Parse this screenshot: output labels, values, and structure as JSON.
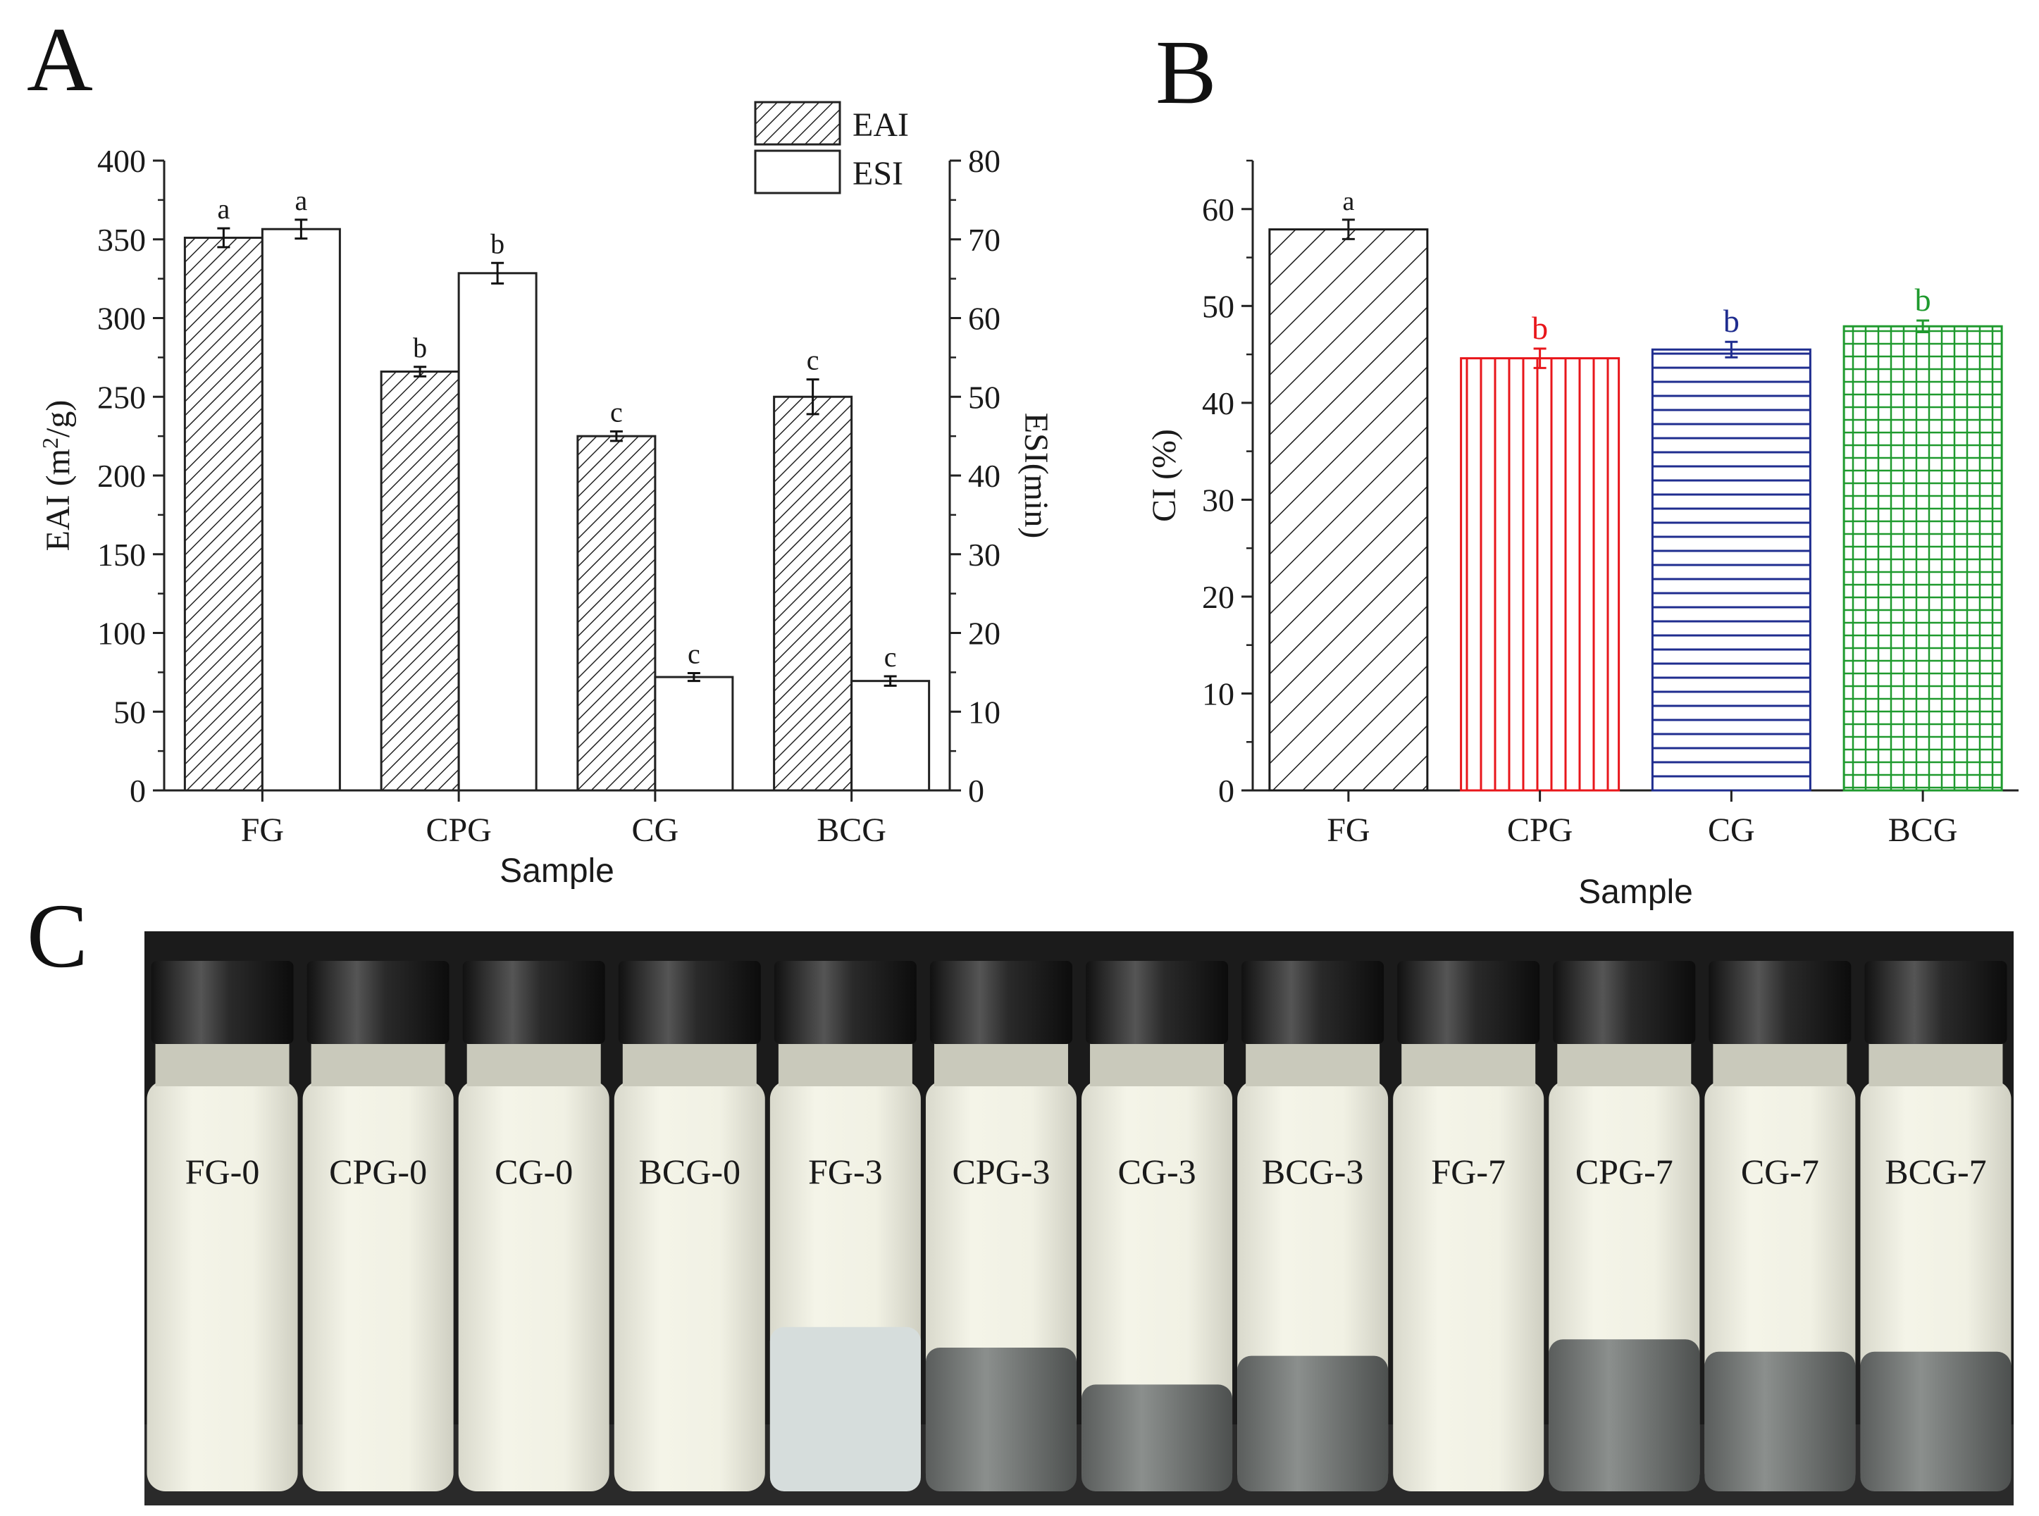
{
  "panels": {
    "a": {
      "letter": "A"
    },
    "b": {
      "letter": "B"
    },
    "c": {
      "letter": "C"
    }
  },
  "chart_data": [
    {
      "id": "A",
      "type": "bar",
      "categories": [
        "FG",
        "CPG",
        "CG",
        "BCG"
      ],
      "xlabel": "Sample",
      "ylabel": "EAI (m²/g)",
      "ylabel_parts": {
        "pre": "EAI (m",
        "sup": "2",
        "post": "/g)"
      },
      "y2label": "ESI(min)",
      "ylim": [
        0,
        400
      ],
      "yticks": [
        0,
        50,
        100,
        150,
        200,
        250,
        300,
        350,
        400
      ],
      "y2lim": [
        0,
        80
      ],
      "y2ticks": [
        0,
        10,
        20,
        30,
        40,
        50,
        60,
        70,
        80
      ],
      "legend": {
        "position": "top-right",
        "entries": [
          "EAI",
          "ESI"
        ]
      },
      "series": [
        {
          "name": "EAI",
          "axis": "left",
          "pattern": "diagonal-hatch",
          "values": [
            351,
            266,
            225,
            250
          ],
          "errors": [
            6,
            3,
            3,
            11
          ],
          "letters": [
            "a",
            "b",
            "c",
            "c"
          ]
        },
        {
          "name": "ESI",
          "axis": "right",
          "pattern": "open",
          "values": [
            71.3,
            65.7,
            14.4,
            13.9
          ],
          "errors": [
            1.2,
            1.3,
            0.5,
            0.6
          ],
          "letters": [
            "a",
            "b",
            "c",
            "c"
          ]
        }
      ]
    },
    {
      "id": "B",
      "type": "bar",
      "categories": [
        "FG",
        "CPG",
        "CG",
        "BCG"
      ],
      "xlabel": "Sample",
      "ylabel": "CI (%)",
      "ylim": [
        0,
        65
      ],
      "yticks": [
        0,
        10,
        20,
        30,
        40,
        50,
        60
      ],
      "series": [
        {
          "name": "CI",
          "values": [
            57.9,
            44.6,
            45.5,
            47.9
          ],
          "errors": [
            1.0,
            1.0,
            0.8,
            0.6
          ],
          "letters": [
            "a",
            "b",
            "b",
            "b"
          ],
          "colors": [
            "#1a1a1a",
            "#e8161b",
            "#1f2d8f",
            "#1f9a2e"
          ],
          "patterns": [
            "diagonal-hatch",
            "vertical-lines",
            "horizontal-lines",
            "grid"
          ]
        }
      ]
    }
  ],
  "photo": {
    "vials": [
      {
        "label": "FG-0",
        "clear_fraction": 0.0
      },
      {
        "label": "CPG-0",
        "clear_fraction": 0.0
      },
      {
        "label": "CG-0",
        "clear_fraction": 0.0
      },
      {
        "label": "BCG-0",
        "clear_fraction": 0.0
      },
      {
        "label": "FG-3",
        "clear_fraction": 0.4
      },
      {
        "label": "CPG-3",
        "clear_fraction": 0.35
      },
      {
        "label": "CG-3",
        "clear_fraction": 0.26
      },
      {
        "label": "BCG-3",
        "clear_fraction": 0.33
      },
      {
        "label": "FG-7",
        "clear_fraction": 0.0
      },
      {
        "label": "CPG-7",
        "clear_fraction": 0.37
      },
      {
        "label": "CG-7",
        "clear_fraction": 0.34
      },
      {
        "label": "BCG-7",
        "clear_fraction": 0.34
      }
    ]
  }
}
